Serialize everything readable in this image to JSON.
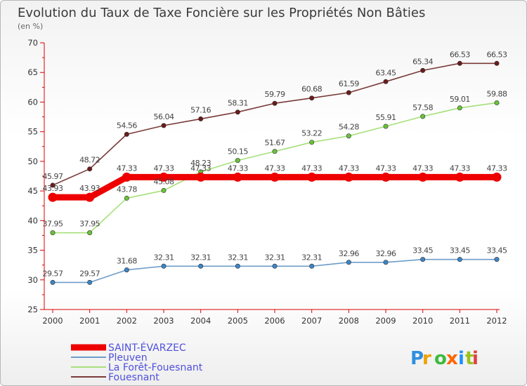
{
  "chart_data": {
    "type": "line",
    "title": "Evolution du Taux de Taxe Foncière sur les Propriétés Non Bâties",
    "subtitle": "(en %)",
    "xlabel": "",
    "ylabel": "",
    "categories": [
      "2000",
      "2001",
      "2002",
      "2003",
      "2004",
      "2005",
      "2006",
      "2007",
      "2008",
      "2009",
      "2010",
      "2011",
      "2012"
    ],
    "ylim": [
      25,
      70
    ],
    "yticks": [
      25,
      30,
      35,
      40,
      45,
      50,
      55,
      60,
      65,
      70
    ],
    "grid": false,
    "legend_position": "bottom-left",
    "series": [
      {
        "name": "SAINT-ÉVARZEC",
        "color": "#ee0000",
        "point_color": "#ee0000",
        "values": [
          43.93,
          43.93,
          47.33,
          47.33,
          47.33,
          47.33,
          47.33,
          47.33,
          47.33,
          47.33,
          47.33,
          47.33,
          47.33
        ],
        "labels": [
          "43.93",
          "43.93",
          "47.33",
          "47.33",
          "47.33",
          "47.33",
          "47.33",
          "47.33",
          "47.33",
          "47.33",
          "47.33",
          "47.33",
          "47.33"
        ]
      },
      {
        "name": "Pleuven",
        "color": "#6e9dc8",
        "point_color": "#3d85c6",
        "values": [
          29.57,
          29.57,
          31.68,
          32.31,
          32.31,
          32.31,
          32.31,
          32.31,
          32.96,
          32.96,
          33.45,
          33.45,
          33.45
        ],
        "labels": [
          "29.57",
          "29.57",
          "31.68",
          "32.31",
          "32.31",
          "32.31",
          "32.31",
          "32.31",
          "32.96",
          "32.96",
          "33.45",
          "33.45",
          "33.45"
        ]
      },
      {
        "name": "La Forêt-Fouesnant",
        "color": "#a6e07a",
        "point_color": "#6ac23a",
        "values": [
          37.95,
          37.95,
          43.78,
          45.08,
          48.23,
          50.15,
          51.67,
          53.22,
          54.28,
          55.91,
          57.58,
          59.01,
          59.88
        ],
        "labels": [
          "37.95",
          "37.95",
          "43.78",
          "45.08",
          "48.23",
          "50.15",
          "51.67",
          "53.22",
          "54.28",
          "55.91",
          "57.58",
          "59.01",
          "59.88"
        ]
      },
      {
        "name": "Fouesnant",
        "color": "#7a3a3a",
        "point_color": "#6a1b1b",
        "values": [
          45.97,
          48.72,
          54.56,
          56.04,
          57.16,
          58.31,
          59.79,
          60.68,
          61.59,
          63.45,
          65.34,
          66.53,
          66.53
        ],
        "labels": [
          "45.97",
          "48.72",
          "54.56",
          "56.04",
          "57.16",
          "58.31",
          "59.79",
          "60.68",
          "61.59",
          "63.45",
          "65.34",
          "66.53",
          "66.53"
        ]
      }
    ]
  },
  "logo": {
    "text": "Proxiti",
    "letters": [
      "P",
      "r",
      "o",
      "x",
      "i",
      "t",
      "i"
    ],
    "colors": [
      "#2f8fe0",
      "#f0a000",
      "#3dbb3d",
      "#ff6600",
      "#1e90ff",
      "#9ac21c",
      "#e04040"
    ]
  }
}
